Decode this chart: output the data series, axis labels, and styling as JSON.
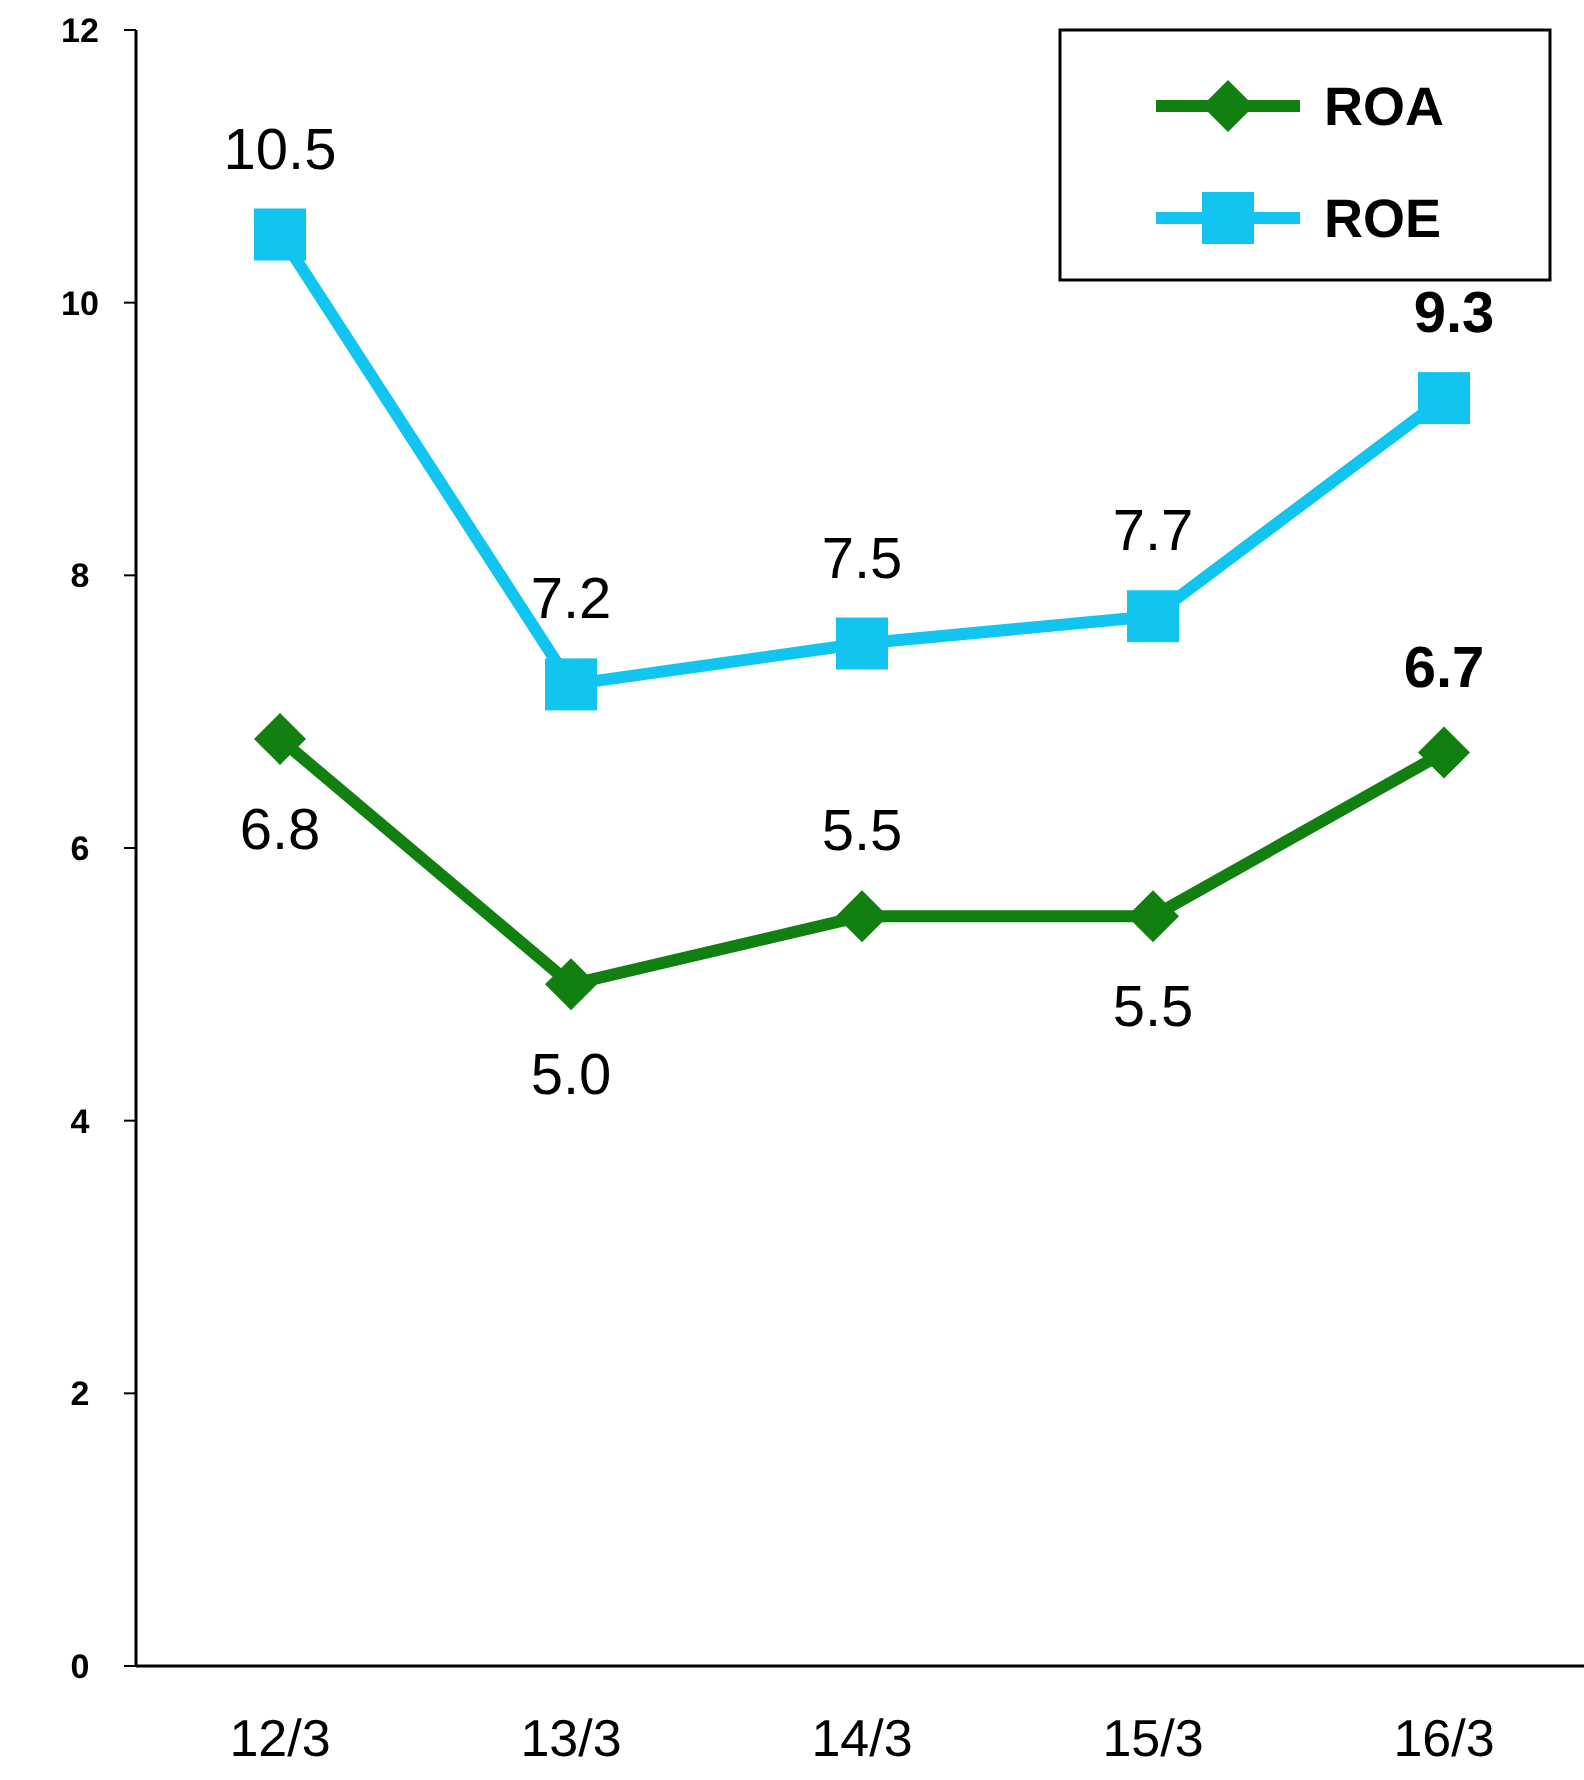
{
  "chart_data": {
    "type": "line",
    "categories": [
      "12/3",
      "13/3",
      "14/3",
      "15/3",
      "16/3"
    ],
    "series": [
      {
        "name": "ROA",
        "color": "#118011",
        "marker": "diamond",
        "values": [
          6.8,
          5.0,
          5.5,
          5.5,
          6.7
        ],
        "value_labels": [
          "6.8",
          "5.0",
          "5.5",
          "5.5",
          "6.7"
        ]
      },
      {
        "name": "ROE",
        "color": "#11c5f0",
        "marker": "square",
        "values": [
          10.5,
          7.2,
          7.5,
          7.7,
          9.3
        ],
        "value_labels": [
          "10.5",
          "7.2",
          "7.5",
          "7.7",
          "9.3"
        ]
      }
    ],
    "ylim": [
      0,
      12
    ],
    "yticks": [
      0,
      2,
      4,
      6,
      8,
      10,
      12
    ],
    "grid": false,
    "legend": "top right",
    "line_style": "solid"
  }
}
